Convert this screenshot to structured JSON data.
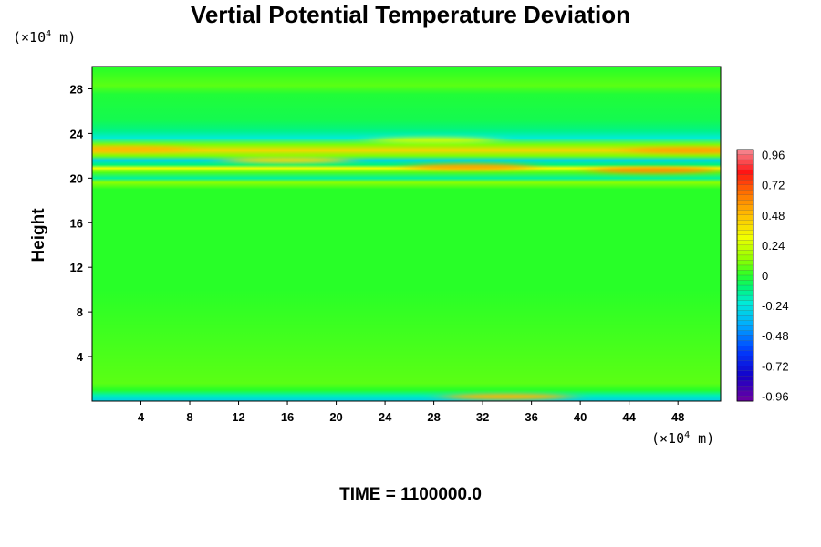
{
  "chart_data": {
    "type": "heatmap",
    "title": "Vertial Potential Temperature Deviation",
    "xlabel": "",
    "ylabel": "Height",
    "x_unit": {
      "prefix": "(×10",
      "exp": "4",
      "suffix": " m)"
    },
    "y_unit": {
      "prefix": "(×10",
      "exp": "4",
      "suffix": " m)"
    },
    "xlim": [
      0,
      51.5
    ],
    "ylim": [
      0,
      30
    ],
    "x_ticks": [
      4,
      8,
      12,
      16,
      20,
      24,
      28,
      32,
      36,
      40,
      44,
      48
    ],
    "y_ticks": [
      4,
      8,
      12,
      16,
      20,
      24,
      28
    ],
    "colorbar": {
      "range": [
        -1.0,
        1.0
      ],
      "ticks": [
        "0.96",
        "0.72",
        "0.48",
        "0.24",
        "0",
        "-0.24",
        "-0.48",
        "-0.72",
        "-0.96"
      ],
      "tick_values": [
        0.96,
        0.72,
        0.48,
        0.24,
        0,
        -0.24,
        -0.48,
        -0.72,
        -0.96
      ]
    },
    "field_bands": [
      {
        "height": 29.8,
        "value": 0.0
      },
      {
        "height": 28.3,
        "value": 0.06
      },
      {
        "height": 27.5,
        "value": -0.02
      },
      {
        "height": 25.2,
        "value": -0.05
      },
      {
        "height": 24.2,
        "value": -0.12
      },
      {
        "height": 23.6,
        "value": -0.22
      },
      {
        "height": 23.0,
        "value": 0.1
      },
      {
        "height": 22.5,
        "value": 0.42
      },
      {
        "height": 22.0,
        "value": 0.1
      },
      {
        "height": 21.6,
        "value": -0.28
      },
      {
        "height": 21.2,
        "value": -0.1
      },
      {
        "height": 20.9,
        "value": 0.3
      },
      {
        "height": 20.5,
        "value": 0.05
      },
      {
        "height": 20.0,
        "value": -0.15
      },
      {
        "height": 19.6,
        "value": 0.12
      },
      {
        "height": 19.0,
        "value": 0.0
      },
      {
        "height": 10.0,
        "value": 0.0
      },
      {
        "height": 1.6,
        "value": 0.06
      },
      {
        "height": 1.0,
        "value": 0.0
      },
      {
        "height": 0.5,
        "value": -0.18
      },
      {
        "height": 0.0,
        "value": -0.3
      }
    ],
    "field_features": [
      {
        "x": 31,
        "height": 21.0,
        "value": 0.55
      },
      {
        "x": 46,
        "height": 20.7,
        "value": 0.6
      },
      {
        "x": 3,
        "height": 22.6,
        "value": 0.5
      },
      {
        "x": 49,
        "height": 22.5,
        "value": 0.55
      },
      {
        "x": 16,
        "height": 21.6,
        "value": 0.4
      },
      {
        "x": 34,
        "height": 0.4,
        "value": 0.5
      },
      {
        "x": 28,
        "height": 23.4,
        "value": 0.25
      }
    ]
  },
  "time_label": "TIME = 1100000.0"
}
